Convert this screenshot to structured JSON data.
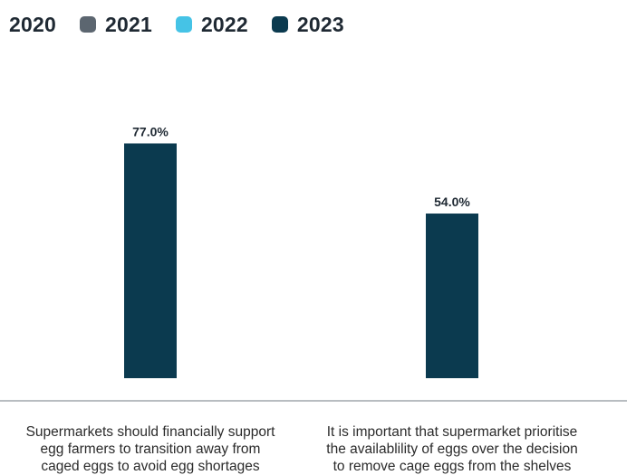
{
  "chart_data": {
    "type": "bar",
    "categories": [
      "Supermarkets should financially support\negg farmers to transition away from\ncaged eggs to avoid egg shortages",
      "It is important that supermarket prioritise\nthe availablility of eggs over the decision\nto remove cage eggs from the shelves"
    ],
    "series": [
      {
        "name": "2020",
        "color": "#111111",
        "values": [
          null,
          null
        ]
      },
      {
        "name": "2021",
        "color": "#5c6670",
        "values": [
          null,
          null
        ]
      },
      {
        "name": "2022",
        "color": "#45c3e6",
        "values": [
          null,
          null
        ]
      },
      {
        "name": "2023",
        "color": "#0b3a4f",
        "values": [
          77.0,
          54.0
        ]
      }
    ],
    "data_labels": [
      "77.0%",
      "54.0%"
    ],
    "ylim": [
      0,
      100
    ],
    "grid": false,
    "legend_position": "top-left",
    "title": "",
    "xlabel": "",
    "ylabel": ""
  }
}
